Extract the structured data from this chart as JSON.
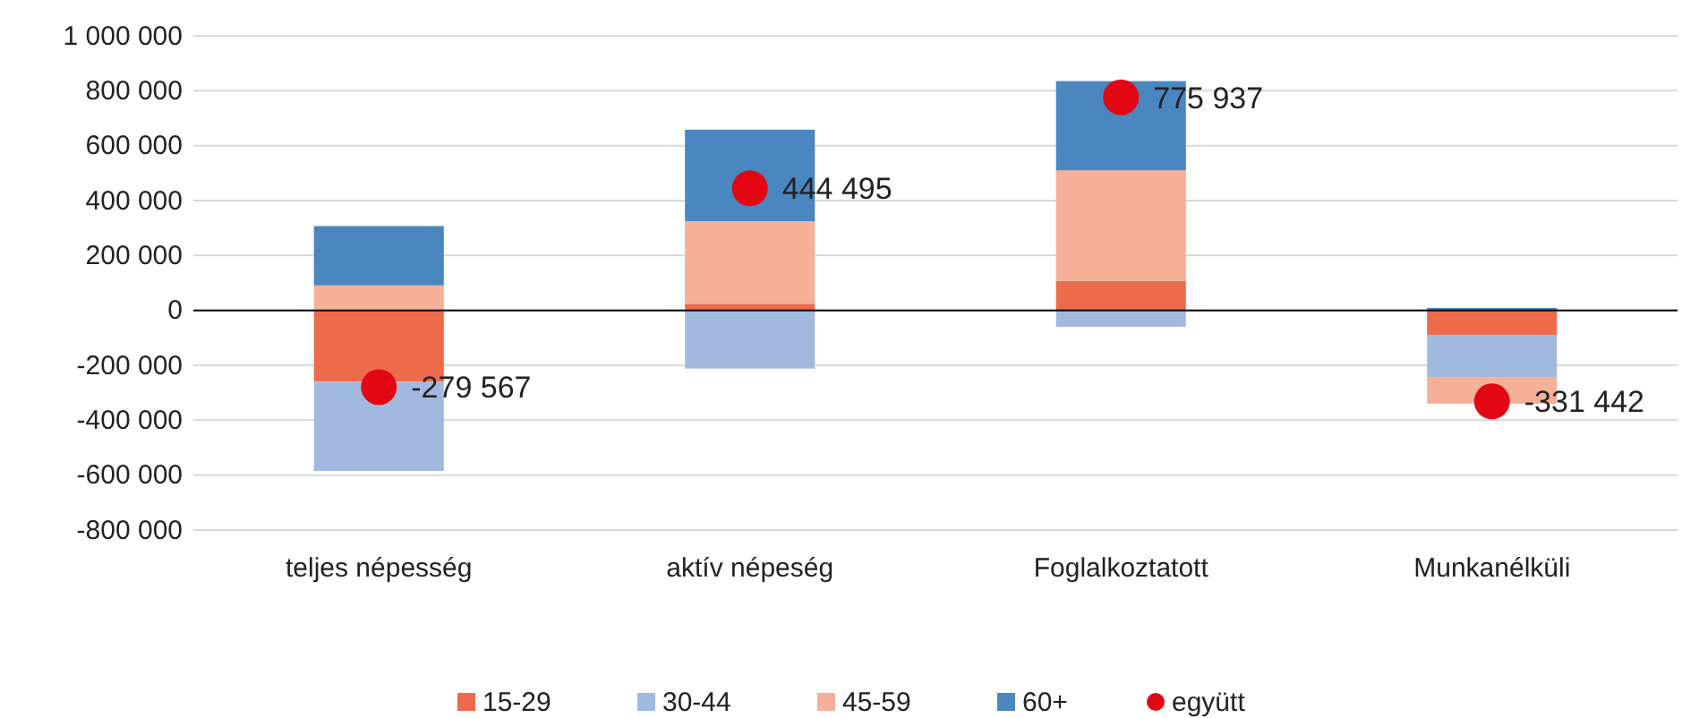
{
  "chart_data": {
    "type": "bar",
    "stacked": true,
    "categories": [
      "teljes népesség",
      "aktív népeség",
      "Foglalkoztatott",
      "Munkanélküli"
    ],
    "series": [
      {
        "name": "15-29",
        "color": "#ed6a4b",
        "values": [
          -260000,
          24000,
          107000,
          -89000
        ]
      },
      {
        "name": "30-44",
        "color": "#a2b9df",
        "values": [
          -325000,
          -212000,
          -60000,
          -156000
        ]
      },
      {
        "name": "45-59",
        "color": "#f5b097",
        "values": [
          91000,
          301000,
          403000,
          -95000
        ]
      },
      {
        "name": "60+",
        "color": "#4a86c0",
        "values": [
          216000,
          333000,
          325000,
          9000
        ]
      },
      {
        "name": "együtt",
        "type": "scatter",
        "color": "#e30613",
        "x": [
          "teljes népesség",
          "aktív népeség",
          "Foglalkoztatott",
          "Munkanélküli"
        ],
        "values": [
          -279567,
          444495,
          775937,
          -331442
        ],
        "value_labels": [
          "-279 567",
          "444 495",
          "775 937",
          "-331 442"
        ]
      }
    ],
    "ylim": [
      -800000,
      1000000
    ],
    "yticks": [
      {
        "value": -800000,
        "label": "-800 000"
      },
      {
        "value": -600000,
        "label": "-600 000"
      },
      {
        "value": -400000,
        "label": "-400 000"
      },
      {
        "value": -200000,
        "label": "-200 000"
      },
      0,
      {
        "value": 200000,
        "label": "200 000"
      },
      {
        "value": 400000,
        "label": "400 000"
      },
      {
        "value": 600000,
        "label": "600 000"
      },
      {
        "value": 800000,
        "label": "800 000"
      },
      {
        "value": 1000000,
        "label": "1 000 000"
      }
    ],
    "grid": "y",
    "legend": "bottom",
    "marker": "circle"
  }
}
